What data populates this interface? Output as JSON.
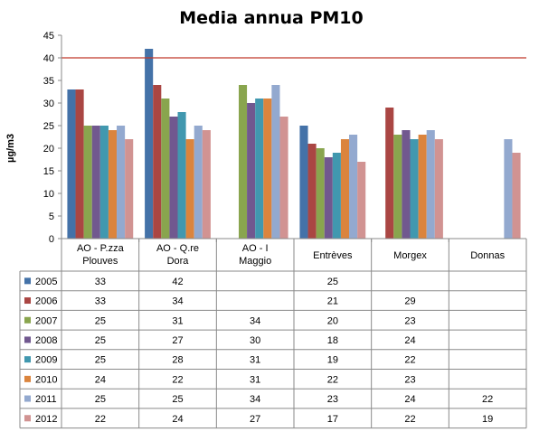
{
  "chart_data": {
    "type": "bar",
    "title": "Media annua PM10",
    "ylabel": "µg/m3",
    "xlabel": "",
    "ylim": [
      0,
      45
    ],
    "yticks": [
      0,
      5,
      10,
      15,
      20,
      25,
      30,
      35,
      40,
      45
    ],
    "grid": false,
    "legend": "data-table",
    "limit_line": {
      "value": 40,
      "color": "#c0392b"
    },
    "categories": [
      [
        "AO - P.zza",
        "Plouves"
      ],
      [
        "AO - Q.re",
        "Dora"
      ],
      [
        "AO - I",
        "Maggio"
      ],
      [
        "Entrèves"
      ],
      [
        "Morgex"
      ],
      [
        "Donnas"
      ]
    ],
    "series": [
      {
        "name": "2005",
        "color": "#4472a8",
        "values": [
          33,
          42,
          null,
          25,
          null,
          null
        ]
      },
      {
        "name": "2006",
        "color": "#aa4643",
        "values": [
          33,
          34,
          null,
          21,
          29,
          null
        ]
      },
      {
        "name": "2007",
        "color": "#89a54e",
        "values": [
          25,
          31,
          34,
          20,
          23,
          null
        ]
      },
      {
        "name": "2008",
        "color": "#71588f",
        "values": [
          25,
          27,
          30,
          18,
          24,
          null
        ]
      },
      {
        "name": "2009",
        "color": "#4198af",
        "values": [
          25,
          28,
          31,
          19,
          22,
          null
        ]
      },
      {
        "name": "2010",
        "color": "#db843d",
        "values": [
          24,
          22,
          31,
          22,
          23,
          null
        ]
      },
      {
        "name": "2011",
        "color": "#93a9cf",
        "values": [
          25,
          25,
          34,
          23,
          24,
          22
        ]
      },
      {
        "name": "2012",
        "color": "#d19392",
        "values": [
          22,
          24,
          27,
          17,
          22,
          19
        ]
      }
    ]
  }
}
